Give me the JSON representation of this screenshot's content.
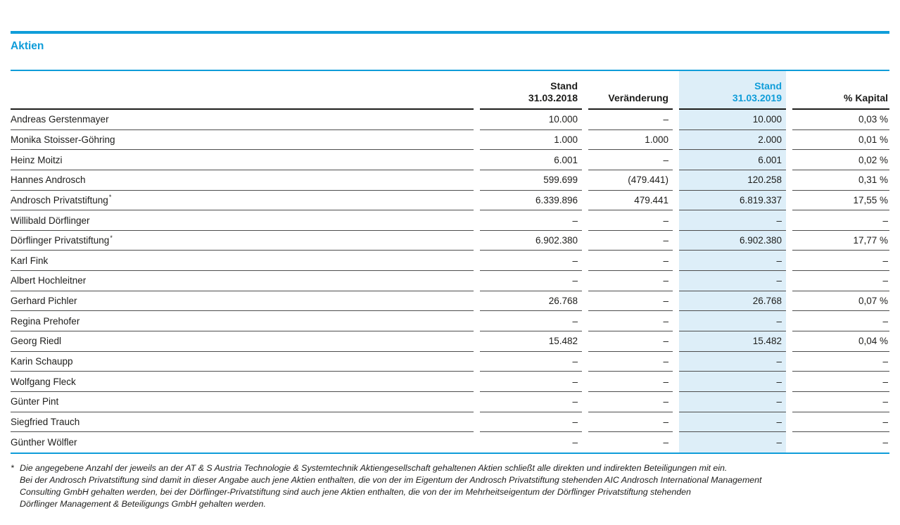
{
  "colors": {
    "accent_blue": "#0f9dd9",
    "highlight_bg": "#ddeef8",
    "text": "#1d1d1b",
    "row_line": "#4d4d4d"
  },
  "section": {
    "title": "Aktien"
  },
  "table": {
    "header": {
      "name_column": "",
      "stand_2018_line1": "Stand",
      "stand_2018_line2": "31.03.2018",
      "change": "Veränderung",
      "stand_2019_line1": "Stand",
      "stand_2019_line2": "31.03.2019",
      "pct": "% Kapital"
    },
    "rows": [
      {
        "name": "Andreas Gerstenmayer",
        "marker": "",
        "stand_2018": "10.000",
        "change": "–",
        "stand_2019": "10.000",
        "pct": "0,03 %"
      },
      {
        "name": "Monika Stoisser-Göhring",
        "marker": "",
        "stand_2018": "1.000",
        "change": "1.000",
        "stand_2019": "2.000",
        "pct": "0,01 %"
      },
      {
        "name": "Heinz Moitzi",
        "marker": "",
        "stand_2018": "6.001",
        "change": "–",
        "stand_2019": "6.001",
        "pct": "0,02 %"
      },
      {
        "name": "Hannes Androsch",
        "marker": "",
        "stand_2018": "599.699",
        "change": "(479.441)",
        "stand_2019": "120.258",
        "pct": "0,31 %"
      },
      {
        "name": "Androsch Privatstiftung",
        "marker": "*",
        "stand_2018": "6.339.896",
        "change": "479.441",
        "stand_2019": "6.819.337",
        "pct": "17,55 %"
      },
      {
        "name": "Willibald Dörflinger",
        "marker": "",
        "stand_2018": "–",
        "change": "–",
        "stand_2019": "–",
        "pct": "–"
      },
      {
        "name": "Dörflinger Privatstiftung",
        "marker": "*",
        "stand_2018": "6.902.380",
        "change": "–",
        "stand_2019": "6.902.380",
        "pct": "17,77 %"
      },
      {
        "name": "Karl Fink",
        "marker": "",
        "stand_2018": "–",
        "change": "–",
        "stand_2019": "–",
        "pct": "–"
      },
      {
        "name": "Albert Hochleitner",
        "marker": "",
        "stand_2018": "–",
        "change": "–",
        "stand_2019": "–",
        "pct": "–"
      },
      {
        "name": "Gerhard Pichler",
        "marker": "",
        "stand_2018": "26.768",
        "change": "–",
        "stand_2019": "26.768",
        "pct": "0,07 %"
      },
      {
        "name": "Regina Prehofer",
        "marker": "",
        "stand_2018": "–",
        "change": "–",
        "stand_2019": "–",
        "pct": "–"
      },
      {
        "name": "Georg Riedl",
        "marker": "",
        "stand_2018": "15.482",
        "change": "–",
        "stand_2019": "15.482",
        "pct": "0,04 %"
      },
      {
        "name": "Karin Schaupp",
        "marker": "",
        "stand_2018": "–",
        "change": "–",
        "stand_2019": "–",
        "pct": "–"
      },
      {
        "name": "Wolfgang Fleck",
        "marker": "",
        "stand_2018": "–",
        "change": "–",
        "stand_2019": "–",
        "pct": "–"
      },
      {
        "name": "Günter Pint",
        "marker": "",
        "stand_2018": "–",
        "change": "–",
        "stand_2019": "–",
        "pct": "–"
      },
      {
        "name": "Siegfried Trauch",
        "marker": "",
        "stand_2018": "–",
        "change": "–",
        "stand_2019": "–",
        "pct": "–"
      },
      {
        "name": "Günther Wölfler",
        "marker": "",
        "stand_2018": "–",
        "change": "–",
        "stand_2019": "–",
        "pct": "–"
      }
    ]
  },
  "footnote": {
    "marker": "*",
    "lines": [
      "Die angegebene Anzahl der jeweils an der AT & S Austria Technologie & Systemtechnik Aktiengesellschaft gehaltenen Aktien schließt alle direkten und indirekten Beteiligungen mit ein.",
      "Bei der Androsch Privatstiftung sind damit in dieser Angabe auch jene Aktien enthalten, die von der im Eigentum der Androsch Privatstiftung stehenden AIC Androsch International Management",
      "Consulting GmbH gehalten werden, bei der Dörflinger-Privatstiftung sind auch jene Aktien enthalten, die von der im Mehrheitseigentum der Dörflinger Privatstiftung stehenden",
      "Dörflinger Management & Beteiligungs GmbH gehalten werden."
    ]
  }
}
